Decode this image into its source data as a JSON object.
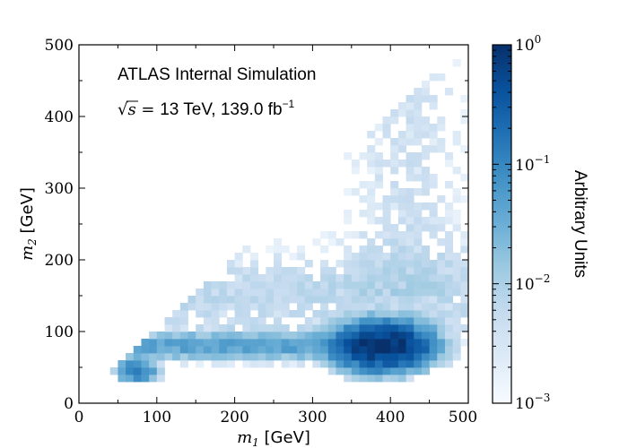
{
  "chart_data": {
    "type": "heatmap",
    "title": "",
    "annotations": {
      "line1": "ATLAS Internal Simulation",
      "line2_energy": "13 TeV, 139.0 fb",
      "line2_energy_unit_exp": "−1",
      "sqrt_s_symbol": "√s = "
    },
    "x_axis": {
      "symbol": "m",
      "subscript": "1",
      "unit": " [GeV]",
      "range": [
        0,
        500
      ],
      "ticks": [
        "0",
        "100",
        "200",
        "300",
        "400",
        "500"
      ]
    },
    "y_axis": {
      "symbol": "m",
      "subscript": "2",
      "unit": " [GeV]",
      "range": [
        0,
        500
      ],
      "ticks": [
        "0",
        "100",
        "200",
        "300",
        "400",
        "500"
      ]
    },
    "colorbar": {
      "label": "Arbitrary Units",
      "scale": "log",
      "range": [
        0.001,
        1
      ],
      "ticks": [
        {
          "base": "10",
          "exp": "0",
          "value": 1
        },
        {
          "base": "10",
          "exp": "−1",
          "value": 0.1
        },
        {
          "base": "10",
          "exp": "−2",
          "value": 0.01
        },
        {
          "base": "10",
          "exp": "−3",
          "value": 0.001
        }
      ],
      "colormap": "Blues"
    },
    "bin_width_gev": 10,
    "kinematic_limit": "m2 <= m1",
    "density_features": {
      "core_peak": {
        "m1": 390,
        "m2": 80,
        "value": 1.0
      },
      "low_mass_shoulder": {
        "m1": 75,
        "m2": 45,
        "value": 0.12
      },
      "band_m2": 80,
      "band_m1_range": [
        70,
        440
      ]
    },
    "colors": {
      "max": "#08306b",
      "min": "#f7fbff",
      "frame": "#000000"
    }
  }
}
